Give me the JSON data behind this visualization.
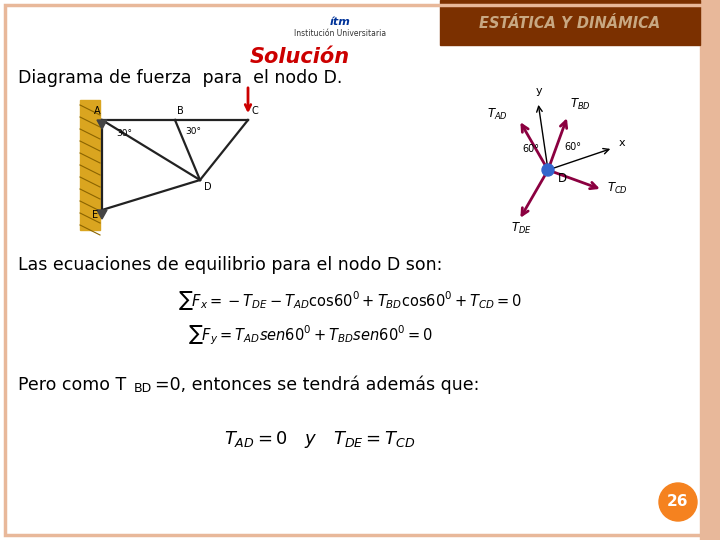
{
  "header_bg_color": "#7B3000",
  "header_text": "ESTÁTICA Y DINÁMICA",
  "header_text_color": "#C8A882",
  "border_color": "#E8B89A",
  "bg_color": "#FFFFFF",
  "title_text": "Solución",
  "title_color": "#CC0000",
  "subtitle_text": "Diagrama de fuerza  para  el nodo D.",
  "eq_label_text": "Las ecuaciones de equilibrio para el nodo D son:",
  "pero_text1": "Pero como T",
  "pero_sub": "BD",
  "pero_text2": "=0, entonces se tendrá además que:",
  "page_num": "26",
  "page_circle_color": "#F5821F",
  "page_num_color": "#FFFFFF",
  "force_color": "#8B0040",
  "truss_color": "#222222",
  "wall_color": "#DAA520",
  "node_color": "#3366CC"
}
